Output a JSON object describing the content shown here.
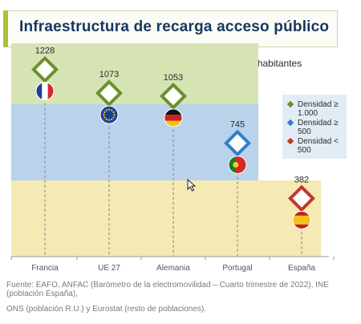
{
  "title": "Infraestructura de recarga acceso público",
  "subtitle": "Puntos de recarga de acceso público por millón de habitantes",
  "colors": {
    "band_high": "#d6e4b4",
    "band_mid": "#b9d3ea",
    "band_low": "#f5e9b4",
    "green_marker": "#6d8f2c",
    "blue_marker": "#2f80c8",
    "red_marker": "#c0392b",
    "title_text": "#16365f",
    "accent": "#a9c23a"
  },
  "legend": [
    {
      "label": "Densidad ≥ 1.000",
      "color": "#6d8f2c"
    },
    {
      "label": "Densidad ≥ 500",
      "color": "#2f80c8"
    },
    {
      "label": "Densidad < 500",
      "color": "#c0392b"
    }
  ],
  "chart_data": {
    "type": "scatter",
    "categories": [
      "Francia",
      "UE 27",
      "Alemania",
      "Portugal",
      "España"
    ],
    "values": [
      1228,
      1073,
      1053,
      745,
      382
    ],
    "labels": [
      "1228",
      "1073",
      "1053",
      "745",
      "382"
    ],
    "density_class": [
      "high",
      "high",
      "high",
      "mid",
      "low"
    ],
    "flags": [
      "france-flag-icon",
      "eu-flag-icon",
      "germany-flag-icon",
      "portugal-flag-icon",
      "spain-flag-icon"
    ],
    "ylim": [
      0,
      1400
    ],
    "bands": [
      {
        "from": 0,
        "to": 500,
        "class": "low"
      },
      {
        "from": 500,
        "to": 1000,
        "class": "mid"
      },
      {
        "from": 1000,
        "to": 1400,
        "class": "high"
      }
    ],
    "xlabel": "",
    "ylabel": ""
  },
  "source": {
    "line1": "Fuente: EAFO, ANFAC (Barómetro de la electromovilidad – Cuarto trimestre de 2022), INE (población España),",
    "line2": "ONS (población R.U.) y Eurostat (resto de poblaciones)."
  }
}
